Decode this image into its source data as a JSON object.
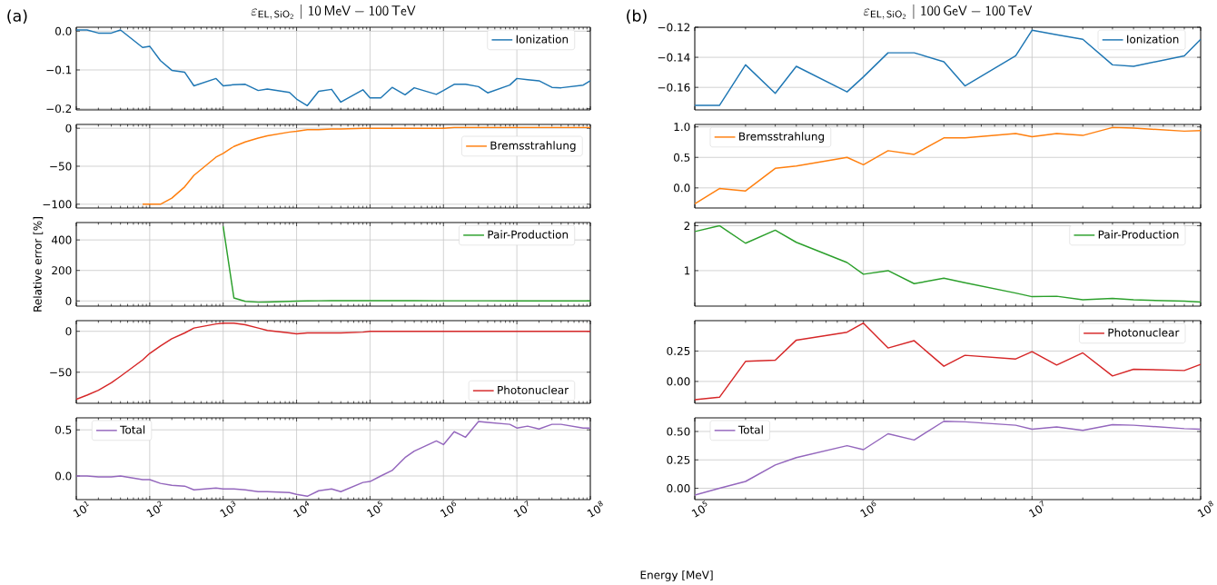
{
  "chart_data": [
    {
      "type": "line",
      "title": "\\varepsilon_{\\mathsf{EL,\\,SiO_2}}\\ |\\ \\mathsf{10\\,MeV} - \\mathsf{100\\,TeV}",
      "annotations": [
        "(a)"
      ],
      "log": "x",
      "grid": true,
      "legend": "top right",
      "tick_labels": "y",
      "x": [
        10,
        14,
        20,
        30,
        40,
        80,
        100,
        140,
        200,
        300,
        400,
        800,
        1000,
        1400,
        2000,
        3000,
        4000,
        8000,
        10000,
        14000,
        20000,
        30000,
        40000,
        80000,
        100000,
        140000,
        200000,
        300000,
        400000,
        800000,
        1000000,
        1400000,
        2000000,
        3000000,
        4000000,
        8000000,
        10000000,
        14000000,
        20000000,
        30000000,
        40000000,
        80000000,
        100000000
      ],
      "xlim": [
        10,
        100000000
      ],
      "ylim": [
        -0.203,
        0.01
      ],
      "xticks": [
        10,
        100,
        1000,
        10000,
        100000,
        1000000,
        10000000,
        100000000
      ],
      "yticks": [
        {
          "value": 0,
          "label": "0.0"
        },
        {
          "value": -0.1,
          "label": "−0.1"
        },
        {
          "value": -0.2,
          "label": "−0.2"
        }
      ],
      "series": [
        {
          "name": "Ionization",
          "color": "#1f77b4",
          "values": [
            0.003,
            0.003,
            -0.005,
            -0.005,
            0.003,
            -0.042,
            -0.039,
            -0.076,
            -0.101,
            -0.106,
            -0.141,
            -0.122,
            -0.141,
            -0.138,
            -0.137,
            -0.153,
            -0.149,
            -0.158,
            -0.175,
            -0.192,
            -0.155,
            -0.15,
            -0.183,
            -0.151,
            -0.172,
            -0.172,
            -0.145,
            -0.164,
            -0.146,
            -0.163,
            -0.153,
            -0.137,
            -0.137,
            -0.143,
            -0.159,
            -0.139,
            -0.122,
            -0.125,
            -0.128,
            -0.145,
            -0.146,
            -0.139,
            -0.128
          ]
        }
      ]
    },
    {
      "type": "line",
      "log": "x",
      "grid": true,
      "legend": "right",
      "tick_labels": "y",
      "xlim": [
        10,
        100000000
      ],
      "ylim": [
        -105,
        5
      ],
      "xticks": [
        10,
        100,
        1000,
        10000,
        100000,
        1000000,
        10000000,
        100000000
      ],
      "yticks": [
        0,
        {
          "value": -50,
          "label": "−50"
        },
        {
          "value": -100,
          "label": "−100"
        }
      ],
      "series": [
        {
          "name": "Bremsstrahlung",
          "color": "#ff7f0e",
          "x": [
            80,
            100,
            140,
            200,
            300,
            400,
            800,
            1000,
            1400,
            2000,
            3000,
            4000,
            8000,
            10000,
            14000,
            20000,
            30000,
            40000,
            80000,
            100000,
            140000,
            200000,
            300000,
            400000,
            800000,
            1000000,
            1400000,
            2000000,
            3000000,
            4000000,
            8000000,
            10000000,
            14000000,
            20000000,
            30000000,
            40000000,
            80000000,
            100000000
          ],
          "values": [
            -100,
            -100,
            -100,
            -92,
            -77,
            -62,
            -38,
            -33,
            -24,
            -18,
            -13,
            -10,
            -5,
            -4,
            -2,
            -2,
            -1,
            -1,
            0,
            0,
            0,
            0,
            0,
            0,
            0,
            0,
            1,
            1,
            1,
            1,
            1,
            1,
            1,
            1,
            1,
            1,
            1,
            1
          ]
        }
      ]
    },
    {
      "type": "line",
      "ylabel": "Relative error [%]",
      "log": "x",
      "grid": true,
      "legend": "top right",
      "tick_labels": "y",
      "xlim": [
        10,
        100000000
      ],
      "ylim": [
        -34,
        514
      ],
      "xticks": [
        10,
        100,
        1000,
        10000,
        100000,
        1000000,
        10000000,
        100000000
      ],
      "yticks": [
        0,
        200,
        400
      ],
      "series": [
        {
          "name": "Pair-Production",
          "color": "#2ca02c",
          "x": [
            1000,
            1400,
            2000,
            3000,
            4000,
            8000,
            10000,
            14000,
            20000,
            30000,
            40000,
            80000,
            100000,
            140000,
            200000,
            300000,
            400000,
            800000,
            1000000,
            1400000,
            2000000,
            3000000,
            4000000,
            8000000,
            10000000,
            14000000,
            20000000,
            30000000,
            40000000,
            80000000,
            100000000
          ],
          "values": [
            490,
            20,
            -3,
            -8,
            -7,
            -3,
            -1,
            0,
            1,
            2,
            2,
            2,
            2,
            2,
            2,
            2,
            2,
            1,
            1,
            1,
            1,
            1,
            1,
            0,
            0,
            0,
            0,
            0,
            0,
            0,
            0
          ]
        }
      ]
    },
    {
      "type": "line",
      "log": "x",
      "grid": true,
      "legend": "bottom right",
      "tick_labels": "y",
      "x": [
        10,
        14,
        20,
        30,
        40,
        80,
        100,
        140,
        200,
        300,
        400,
        800,
        1000,
        1400,
        2000,
        3000,
        4000,
        8000,
        10000,
        14000,
        20000,
        30000,
        40000,
        80000,
        100000,
        140000,
        200000,
        300000,
        400000,
        800000,
        1000000,
        1400000,
        2000000,
        3000000,
        4000000,
        8000000,
        10000000,
        14000000,
        20000000,
        30000000,
        40000000,
        80000000,
        100000000
      ],
      "xlim": [
        10,
        100000000
      ],
      "ylim": [
        -88,
        13
      ],
      "xticks": [
        10,
        100,
        1000,
        10000,
        100000,
        1000000,
        10000000,
        100000000
      ],
      "yticks": [
        0,
        {
          "value": -50,
          "label": "−50"
        }
      ],
      "series": [
        {
          "name": "Photonuclear",
          "color": "#d62728",
          "values": [
            -83,
            -78,
            -72,
            -63,
            -55,
            -35,
            -27,
            -18,
            -9,
            -2,
            4,
            9,
            10,
            10,
            8,
            4,
            1,
            -2,
            -3,
            -2,
            -2,
            -2,
            -2,
            -1,
            0,
            0,
            0,
            0,
            0,
            0,
            0,
            0,
            0,
            0,
            0,
            0,
            0,
            0,
            0,
            0,
            0,
            0,
            0
          ]
        }
      ]
    },
    {
      "type": "line",
      "xlabel": "Energy [MeV]",
      "log": "x",
      "grid": true,
      "legend": "top left",
      "x": [
        10,
        14,
        20,
        30,
        40,
        80,
        100,
        140,
        200,
        300,
        400,
        800,
        1000,
        1400,
        2000,
        3000,
        4000,
        8000,
        10000,
        14000,
        20000,
        30000,
        40000,
        80000,
        100000,
        140000,
        200000,
        300000,
        400000,
        800000,
        1000000,
        1400000,
        2000000,
        3000000,
        4000000,
        8000000,
        10000000,
        14000000,
        20000000,
        30000000,
        40000000,
        80000000,
        100000000
      ],
      "xlim": [
        10,
        100000000
      ],
      "ylim": [
        -0.256,
        0.63
      ],
      "xticks": [
        {
          "value": 10,
          "label": "10$^{1}$"
        },
        {
          "value": 100,
          "label": "10$^{2}$"
        },
        {
          "value": 1000,
          "label": "10$^{3}$"
        },
        {
          "value": 10000,
          "label": "10$^{4}$"
        },
        {
          "value": 100000,
          "label": "10$^{5}$"
        },
        {
          "value": 1000000,
          "label": "10$^{6}$"
        },
        {
          "value": 10000000,
          "label": "10$^{7}$"
        },
        {
          "value": 100000000,
          "label": "10$^{8}$"
        }
      ],
      "yticks": [
        {
          "value": 0,
          "label": "0.0"
        },
        0.5
      ],
      "series": [
        {
          "name": "Total",
          "color": "#9467bd",
          "values": [
            0.0,
            0.0,
            -0.01,
            -0.01,
            0.0,
            -0.04,
            -0.04,
            -0.08,
            -0.1,
            -0.11,
            -0.15,
            -0.13,
            -0.14,
            -0.14,
            -0.15,
            -0.17,
            -0.17,
            -0.18,
            -0.2,
            -0.22,
            -0.16,
            -0.14,
            -0.17,
            -0.07,
            -0.06,
            0.0,
            0.06,
            0.2,
            0.27,
            0.38,
            0.34,
            0.48,
            0.42,
            0.59,
            0.58,
            0.56,
            0.52,
            0.54,
            0.51,
            0.56,
            0.56,
            0.52,
            0.52
          ]
        }
      ]
    },
    {
      "type": "line",
      "title": "\\varepsilon_{\\mathsf{EL,\\,SiO_2}}\\ |\\ \\mathsf{100\\,GeV} - \\mathsf{100\\,TeV}",
      "annotations": [
        "(b)"
      ],
      "log": "x",
      "grid": true,
      "legend": "top right",
      "tick_labels": "y",
      "x": [
        100000,
        140000,
        200000,
        300000,
        400000,
        800000,
        1000000,
        1400000,
        2000000,
        3000000,
        4000000,
        8000000,
        10000000,
        14000000,
        20000000,
        30000000,
        40000000,
        80000000,
        100000000
      ],
      "xlim": [
        100000,
        100000000
      ],
      "ylim": [
        -0.175,
        -0.12
      ],
      "xticks": [
        100000,
        1000000,
        10000000,
        100000000
      ],
      "yticks": [
        {
          "value": -0.12,
          "label": "−0.12"
        },
        {
          "value": -0.14,
          "label": "−0.14"
        },
        {
          "value": -0.16,
          "label": "−0.16"
        }
      ],
      "series": [
        {
          "name": "Ionization",
          "color": "#1f77b4",
          "values": [
            -0.172,
            -0.172,
            -0.145,
            -0.164,
            -0.146,
            -0.163,
            -0.153,
            -0.137,
            -0.137,
            -0.143,
            -0.159,
            -0.139,
            -0.122,
            -0.125,
            -0.128,
            -0.145,
            -0.146,
            -0.139,
            -0.128
          ]
        }
      ]
    },
    {
      "type": "line",
      "log": "x",
      "grid": true,
      "legend": "top left",
      "tick_labels": "y",
      "x": [
        100000,
        140000,
        200000,
        300000,
        400000,
        800000,
        1000000,
        1400000,
        2000000,
        3000000,
        4000000,
        8000000,
        10000000,
        14000000,
        20000000,
        30000000,
        40000000,
        80000000,
        100000000
      ],
      "xlim": [
        100000,
        100000000
      ],
      "ylim": [
        -0.33,
        1.04
      ],
      "xticks": [
        100000,
        1000000,
        10000000,
        100000000
      ],
      "yticks": [
        {
          "value": 0,
          "label": "0.0"
        },
        0.5,
        {
          "value": 1,
          "label": "1.0"
        }
      ],
      "series": [
        {
          "name": "Bremsstrahlung",
          "color": "#ff7f0e",
          "values": [
            -0.26,
            -0.01,
            -0.05,
            0.32,
            0.36,
            0.5,
            0.38,
            0.61,
            0.55,
            0.82,
            0.82,
            0.89,
            0.84,
            0.89,
            0.86,
            0.99,
            0.98,
            0.93,
            0.94
          ]
        }
      ]
    },
    {
      "type": "line",
      "log": "x",
      "grid": true,
      "legend": "top right",
      "tick_labels": "y",
      "x": [
        100000,
        140000,
        200000,
        300000,
        400000,
        800000,
        1000000,
        1400000,
        2000000,
        3000000,
        4000000,
        8000000,
        10000000,
        14000000,
        20000000,
        30000000,
        40000000,
        80000000,
        100000000
      ],
      "xlim": [
        100000,
        100000000
      ],
      "ylim": [
        0.21,
        2.07
      ],
      "xticks": [
        100000,
        1000000,
        10000000,
        100000000
      ],
      "yticks": [
        1,
        2
      ],
      "series": [
        {
          "name": "Pair-Production",
          "color": "#2ca02c",
          "values": [
            1.87,
            2.0,
            1.61,
            1.9,
            1.63,
            1.18,
            0.92,
            1.0,
            0.71,
            0.83,
            0.73,
            0.5,
            0.42,
            0.43,
            0.35,
            0.38,
            0.35,
            0.32,
            0.3
          ]
        }
      ]
    },
    {
      "type": "line",
      "log": "x",
      "grid": true,
      "legend": "top right",
      "tick_labels": "y",
      "x": [
        100000,
        140000,
        200000,
        300000,
        400000,
        800000,
        1000000,
        1400000,
        2000000,
        3000000,
        4000000,
        8000000,
        10000000,
        14000000,
        20000000,
        30000000,
        40000000,
        80000000,
        100000000
      ],
      "xlim": [
        100000,
        100000000
      ],
      "ylim": [
        -0.18,
        0.5
      ],
      "xticks": [
        100000,
        1000000,
        10000000,
        100000000
      ],
      "yticks": [
        {
          "value": 0,
          "label": "0.00"
        },
        0.25
      ],
      "series": [
        {
          "name": "Photonuclear",
          "color": "#d62728",
          "values": [
            -0.15,
            -0.13,
            0.165,
            0.175,
            0.34,
            0.405,
            0.48,
            0.275,
            0.335,
            0.125,
            0.215,
            0.185,
            0.245,
            0.135,
            0.235,
            0.045,
            0.1,
            0.09,
            0.14
          ]
        }
      ]
    },
    {
      "type": "line",
      "log": "x",
      "grid": true,
      "legend": "top left",
      "x": [
        100000,
        140000,
        200000,
        300000,
        400000,
        800000,
        1000000,
        1400000,
        2000000,
        3000000,
        4000000,
        8000000,
        10000000,
        14000000,
        20000000,
        30000000,
        40000000,
        80000000,
        100000000
      ],
      "xlim": [
        100000,
        100000000
      ],
      "ylim": [
        -0.1,
        0.62
      ],
      "xticks": [
        {
          "value": 100000,
          "label": "10$^{5}$"
        },
        {
          "value": 1000000,
          "label": "10$^{6}$"
        },
        {
          "value": 10000000,
          "label": "10$^{7}$"
        },
        {
          "value": 100000000,
          "label": "10$^{8}$"
        }
      ],
      "yticks": [
        {
          "value": 0,
          "label": "0.00"
        },
        0.25,
        {
          "value": 0.5,
          "label": "0.50"
        }
      ],
      "series": [
        {
          "name": "Total",
          "color": "#9467bd",
          "values": [
            -0.06,
            0.0,
            0.06,
            0.205,
            0.27,
            0.375,
            0.34,
            0.48,
            0.425,
            0.59,
            0.585,
            0.555,
            0.52,
            0.54,
            0.51,
            0.56,
            0.555,
            0.525,
            0.52
          ]
        }
      ]
    }
  ]
}
